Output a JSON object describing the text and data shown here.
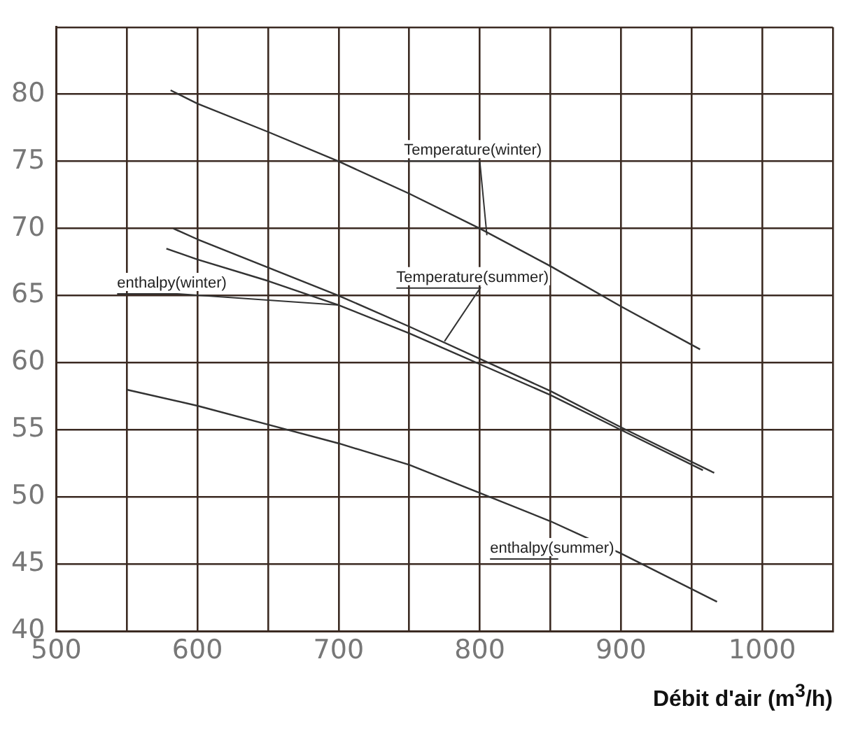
{
  "chart_data": {
    "type": "line",
    "xlabel": "Débit d'air (m$^{3}$/h)",
    "xlim": [
      500,
      1050
    ],
    "xticks": [
      500,
      {
        "value": 550,
        "label": null
      },
      600,
      {
        "value": 650,
        "label": null
      },
      700,
      {
        "value": 750,
        "label": null
      },
      800,
      {
        "value": 850,
        "label": null
      },
      900,
      {
        "value": 950,
        "label": null
      },
      1000,
      {
        "value": 1050,
        "label": null
      }
    ],
    "ylim": [
      40,
      85
    ],
    "yticks": [
      40,
      45,
      50,
      55,
      60,
      65,
      70,
      75,
      80,
      {
        "value": 85,
        "label": null
      }
    ],
    "grid": true,
    "legend": false,
    "marker": "none",
    "line_style": "solid",
    "series": [
      {
        "color": "#333333",
        "x": [
          581,
          600,
          650,
          700,
          750,
          800,
          850,
          900,
          956
        ],
        "values": [
          80.3,
          79.3,
          77.2,
          75,
          72.6,
          70,
          67.2,
          64.2,
          61
        ]
      },
      {
        "color": "#333333",
        "x": [
          583,
          600,
          650,
          700,
          750,
          800,
          850,
          900,
          966
        ],
        "values": [
          70,
          69.2,
          67.1,
          65,
          62.7,
          60.3,
          57.9,
          55.2,
          51.8
        ]
      },
      {
        "color": "#333333",
        "x": [
          578,
          600,
          650,
          700,
          750,
          800,
          850,
          900,
          958
        ],
        "values": [
          68.5,
          67.7,
          66.1,
          64.3,
          62.2,
          59.9,
          57.6,
          55,
          52
        ]
      },
      {
        "color": "#333333",
        "x": [
          550,
          600,
          650,
          700,
          750,
          800,
          850,
          900,
          968
        ],
        "values": [
          58,
          56.8,
          55.4,
          54,
          52.4,
          50.3,
          48.2,
          45.8,
          42.2
        ]
      }
    ],
    "annotations": [
      {
        "text": "Temperature(winter)",
        "x": 805,
        "y": 69.5
      },
      {
        "text": "Temperature(summer)",
        "x": 775,
        "y": 61.6
      },
      {
        "text": "enthalpy(winter)",
        "x": 700,
        "y": 64.3
      },
      {
        "text": "enthalpy(summer)",
        "x": 905,
        "y": 45.6
      }
    ]
  }
}
